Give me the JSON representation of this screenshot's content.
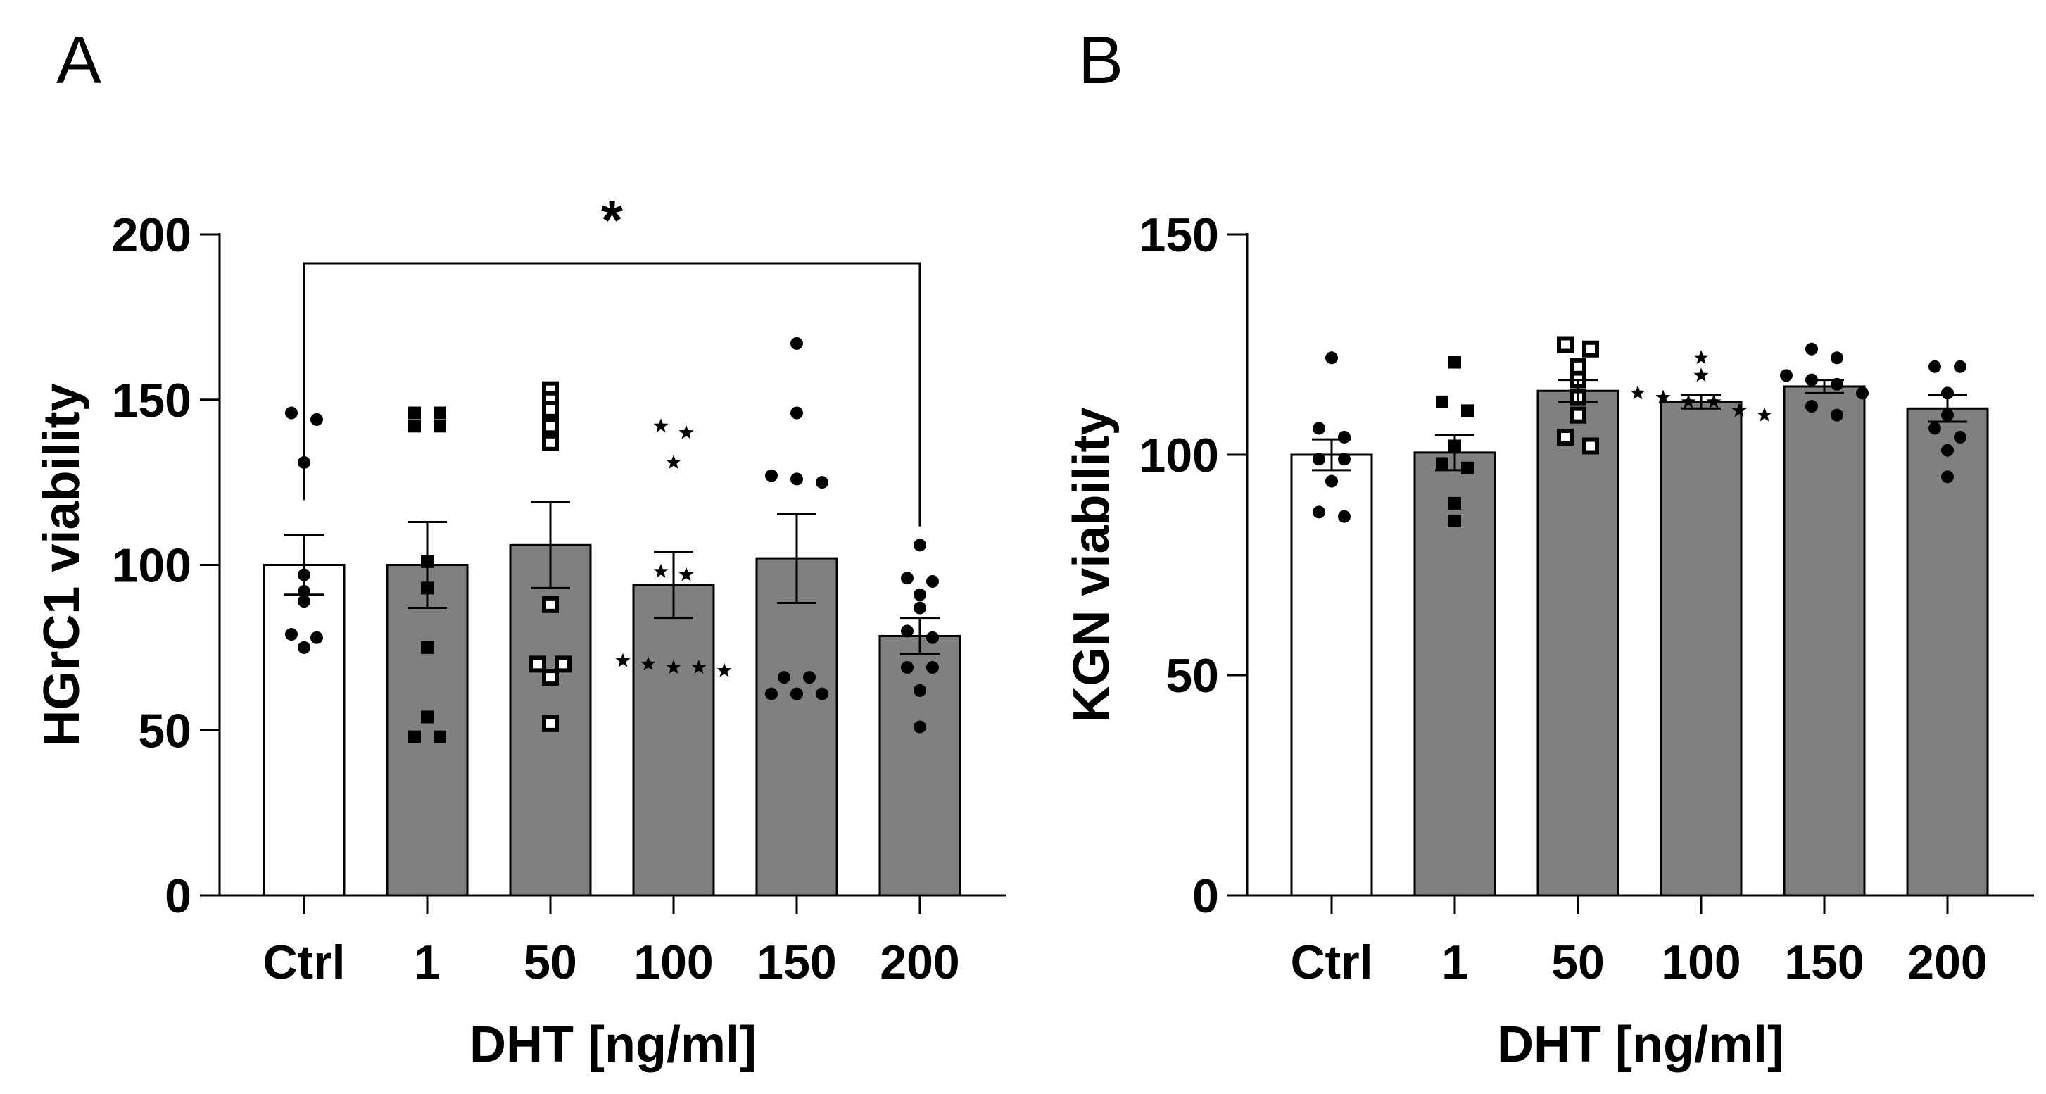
{
  "chart_data": [
    {
      "panel": "A",
      "type": "bar",
      "xlabel": "DHT [ng/ml]",
      "ylabel": "HGrC1 viability",
      "ylim": [
        0,
        200
      ],
      "yticks": [
        0,
        50,
        100,
        150,
        200
      ],
      "categories": [
        "Ctrl",
        "1",
        "50",
        "100",
        "150",
        "200"
      ],
      "values": [
        100,
        100,
        106,
        94,
        102,
        78.5
      ],
      "sem": [
        9,
        13,
        13,
        10,
        13.5,
        5.5
      ],
      "bar_colors": [
        "#ffffff",
        "#808080",
        "#808080",
        "#808080",
        "#808080",
        "#808080"
      ],
      "markers": [
        "circle",
        "square",
        "open-square",
        "star",
        "circle",
        "circle"
      ],
      "points": [
        [
          144,
          146,
          131,
          97,
          92,
          89,
          79,
          78,
          75
        ],
        [
          146,
          146,
          142,
          142,
          101,
          93,
          75,
          54,
          48,
          48
        ],
        [
          153,
          150,
          147,
          142,
          137,
          88,
          70,
          70,
          66,
          52
        ],
        [
          142,
          140,
          131,
          98,
          97,
          71,
          70,
          69,
          69,
          68
        ],
        [
          167,
          146,
          127,
          126,
          125,
          66,
          66,
          61,
          61,
          61
        ],
        [
          106,
          95,
          96,
          91,
          87,
          80,
          78,
          69,
          69,
          62,
          51
        ]
      ],
      "significance": {
        "from": "Ctrl",
        "to": "200",
        "label": "*"
      }
    },
    {
      "panel": "B",
      "type": "bar",
      "xlabel": "DHT [ng/ml]",
      "ylabel": "KGN viability",
      "ylim": [
        0,
        150
      ],
      "yticks": [
        0,
        50,
        100,
        150
      ],
      "categories": [
        "Ctrl",
        "1",
        "50",
        "100",
        "150",
        "200"
      ],
      "values": [
        100,
        100.5,
        114.5,
        112,
        115.5,
        110.5
      ],
      "sem": [
        3.5,
        4,
        2.5,
        1.5,
        1.5,
        3
      ],
      "bar_colors": [
        "#ffffff",
        "#808080",
        "#808080",
        "#808080",
        "#808080",
        "#808080"
      ],
      "markers": [
        "circle",
        "square",
        "open-square",
        "star",
        "circle",
        "circle"
      ],
      "points": [
        [
          122,
          106,
          104,
          99,
          99,
          94,
          87,
          86
        ],
        [
          121,
          112,
          110,
          102,
          98,
          97,
          89,
          85
        ],
        [
          125,
          124,
          120,
          117,
          113,
          109,
          104,
          102
        ],
        [
          122,
          118,
          114,
          113,
          112,
          112,
          110,
          109
        ],
        [
          124,
          122,
          118,
          117,
          116,
          114,
          111,
          109
        ],
        [
          120,
          120,
          114,
          109,
          106,
          104,
          101,
          95
        ]
      ],
      "significance": null
    }
  ]
}
